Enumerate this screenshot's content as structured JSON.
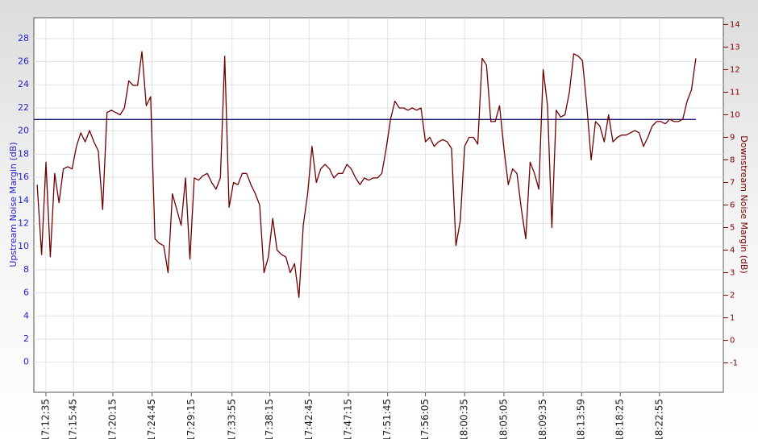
{
  "chart_data": {
    "type": "line",
    "y_label": "Upstream Noise Margin (dB)",
    "y2_label": "Downstream Noise Margin (dB)",
    "xlim": [
      "17:11:12",
      "18:30:14"
    ],
    "xticks": [
      "17:12:35",
      "17:15:45",
      "17:20:15",
      "17:24:45",
      "17:29:15",
      "17:33:55",
      "17:38:15",
      "17:42:45",
      "17:47:15",
      "17:51:45",
      "17:56:05",
      "18:00:35",
      "18:05:05",
      "18:09:35",
      "18:13:59",
      "18:18:25",
      "18:22:55"
    ],
    "ylim": [
      -2.6,
      29.8
    ],
    "yticks": [
      0,
      2,
      4,
      6,
      8,
      10,
      12,
      14,
      16,
      18,
      20,
      22,
      24,
      26,
      28
    ],
    "y2lim": [
      -2.3,
      14.3
    ],
    "y2ticks": [
      -1,
      0,
      1,
      2,
      3,
      4,
      5,
      6,
      7,
      8,
      9,
      10,
      11,
      12,
      13,
      14
    ],
    "grid": true,
    "series": [
      {
        "name": "Upstream",
        "color": "#1c1c78",
        "axis": "y",
        "x": [
          "17:11:12",
          "18:27:05"
        ],
        "values": [
          21,
          21
        ]
      },
      {
        "name": "Downstream",
        "color": "#6e0000",
        "axis": "y2",
        "x": [
          "17:11:35",
          "17:12:05",
          "17:12:35",
          "17:13:05",
          "17:13:35",
          "17:14:05",
          "17:14:35",
          "17:15:05",
          "17:15:35",
          "17:16:05",
          "17:16:35",
          "17:17:05",
          "17:17:35",
          "17:18:05",
          "17:18:35",
          "17:19:05",
          "17:19:35",
          "17:20:05",
          "17:20:35",
          "17:21:05",
          "17:21:35",
          "17:22:05",
          "17:22:35",
          "17:23:05",
          "17:23:35",
          "17:24:05",
          "17:24:35",
          "17:25:05",
          "17:25:35",
          "17:26:05",
          "17:26:35",
          "17:27:05",
          "17:27:35",
          "17:28:05",
          "17:28:35",
          "17:29:05",
          "17:29:35",
          "17:30:05",
          "17:30:35",
          "17:31:05",
          "17:31:35",
          "17:32:05",
          "17:32:35",
          "17:33:05",
          "17:33:35",
          "17:34:05",
          "17:34:35",
          "17:35:05",
          "17:35:35",
          "17:36:05",
          "17:36:35",
          "17:37:05",
          "17:37:35",
          "17:38:05",
          "17:38:35",
          "17:39:05",
          "17:39:35",
          "17:40:05",
          "17:40:35",
          "17:41:05",
          "17:41:35",
          "17:42:05",
          "17:42:35",
          "17:43:05",
          "17:43:35",
          "17:44:05",
          "17:44:35",
          "17:45:05",
          "17:45:35",
          "17:46:05",
          "17:46:35",
          "17:47:05",
          "17:47:35",
          "17:48:05",
          "17:48:35",
          "17:49:05",
          "17:49:35",
          "17:50:05",
          "17:50:35",
          "17:51:05",
          "17:51:35",
          "17:52:05",
          "17:52:35",
          "17:53:05",
          "17:53:35",
          "17:54:05",
          "17:54:35",
          "17:55:05",
          "17:55:35",
          "17:56:05",
          "17:56:35",
          "17:57:05",
          "17:57:35",
          "17:58:05",
          "17:58:35",
          "17:59:05",
          "17:59:35",
          "18:00:05",
          "18:00:35",
          "18:01:05",
          "18:01:35",
          "18:02:05",
          "18:02:35",
          "18:03:05",
          "18:03:35",
          "18:04:05",
          "18:04:35",
          "18:05:05",
          "18:05:35",
          "18:06:05",
          "18:06:35",
          "18:07:05",
          "18:07:35",
          "18:08:05",
          "18:08:35",
          "18:09:05",
          "18:09:35",
          "18:10:05",
          "18:10:35",
          "18:11:05",
          "18:11:35",
          "18:12:05",
          "18:12:35",
          "18:13:05",
          "18:13:35",
          "18:14:05",
          "18:14:35",
          "18:15:05",
          "18:15:35",
          "18:16:05",
          "18:16:35",
          "18:17:05",
          "18:17:35",
          "18:18:05",
          "18:18:35",
          "18:19:05",
          "18:19:35",
          "18:20:05",
          "18:20:35",
          "18:21:05",
          "18:21:35",
          "18:22:05",
          "18:22:35",
          "18:23:05",
          "18:23:35",
          "18:24:05",
          "18:24:35",
          "18:25:05",
          "18:25:35",
          "18:26:05",
          "18:26:35",
          "18:27:05"
        ],
        "values": [
          6.9,
          3.8,
          7.9,
          3.7,
          7.4,
          6.1,
          7.6,
          7.7,
          7.6,
          8.6,
          9.2,
          8.8,
          9.3,
          8.8,
          8.4,
          5.8,
          10.1,
          10.2,
          10.1,
          10.0,
          10.3,
          11.5,
          11.3,
          11.3,
          12.8,
          10.4,
          10.8,
          4.5,
          4.3,
          4.2,
          3.0,
          6.5,
          5.8,
          5.1,
          7.2,
          3.6,
          7.2,
          7.1,
          7.3,
          7.4,
          7.0,
          6.7,
          7.2,
          12.6,
          5.9,
          7.0,
          6.9,
          7.4,
          7.4,
          6.9,
          6.5,
          6.0,
          3.0,
          3.7,
          5.4,
          4.0,
          3.8,
          3.7,
          3.0,
          3.4,
          1.9,
          5.1,
          6.5,
          8.6,
          7.0,
          7.6,
          7.8,
          7.6,
          7.2,
          7.4,
          7.4,
          7.8,
          7.6,
          7.2,
          6.9,
          7.2,
          7.1,
          7.2,
          7.2,
          7.4,
          8.5,
          9.8,
          10.6,
          10.3,
          10.3,
          10.2,
          10.3,
          10.2,
          10.3,
          8.8,
          9.0,
          8.6,
          8.8,
          8.9,
          8.8,
          8.5,
          4.2,
          5.3,
          8.6,
          9.0,
          9.0,
          8.7,
          12.5,
          12.2,
          9.7,
          9.7,
          10.4,
          8.5,
          6.9,
          7.6,
          7.4,
          5.8,
          4.5,
          7.9,
          7.4,
          6.7,
          12.0,
          10.4,
          5.0,
          10.2,
          9.9,
          10.0,
          11.0,
          12.7,
          12.6,
          12.4,
          10.4,
          8.0,
          9.7,
          9.5,
          8.8,
          10.0,
          8.8,
          9.0,
          9.1,
          9.1,
          9.2,
          9.3,
          9.2,
          8.6,
          9.0,
          9.5,
          9.7,
          9.7,
          9.6,
          9.8,
          9.7,
          9.7,
          9.8,
          10.6,
          11.1,
          12.5
        ]
      }
    ]
  }
}
